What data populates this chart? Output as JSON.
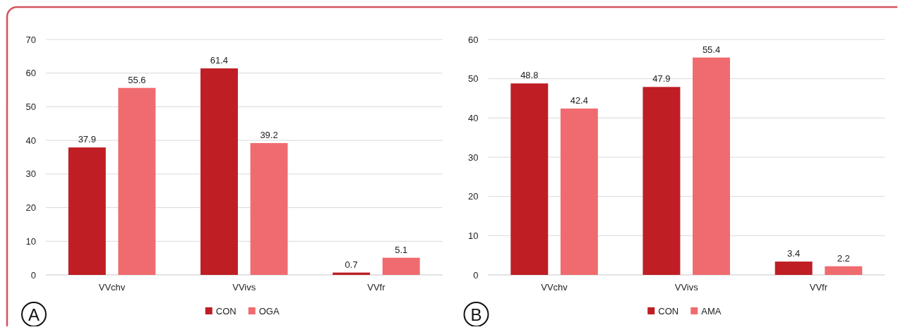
{
  "chart_data": [
    {
      "type": "bar",
      "categories": [
        "VVchv",
        "VVivs",
        "VVfr"
      ],
      "series": [
        {
          "name": "CON",
          "color": "#be1e24",
          "values": [
            37.9,
            61.4,
            0.7
          ]
        },
        {
          "name": "OGA",
          "color": "#f06b6f",
          "values": [
            55.6,
            39.2,
            5.1
          ]
        }
      ],
      "ylim": [
        0,
        70
      ],
      "yticks": [
        0,
        10,
        20,
        30,
        40,
        50,
        60,
        70
      ],
      "grid": "y",
      "legend": "bottom",
      "data_labels": true,
      "annotations": [
        "A"
      ]
    },
    {
      "type": "bar",
      "categories": [
        "VVchv",
        "VVivs",
        "VVfr"
      ],
      "series": [
        {
          "name": "CON",
          "color": "#be1e24",
          "values": [
            48.8,
            47.9,
            3.4
          ]
        },
        {
          "name": "AMA",
          "color": "#f06b6f",
          "values": [
            42.4,
            55.4,
            2.2
          ]
        }
      ],
      "ylim": [
        0,
        60
      ],
      "yticks": [
        0,
        10,
        20,
        30,
        40,
        50,
        60
      ],
      "grid": "y",
      "legend": "bottom",
      "data_labels": true,
      "annotations": [
        "B"
      ]
    }
  ]
}
